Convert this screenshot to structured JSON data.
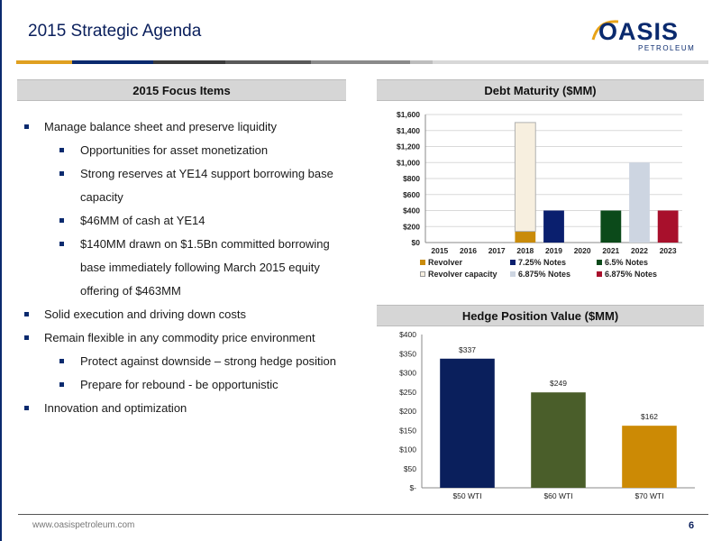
{
  "page": {
    "title": "2015 Strategic Agenda",
    "footer_url": "www.oasispetroleum.com",
    "page_number": "6"
  },
  "logo": {
    "word": "OASIS",
    "sub": "PETROLEUM",
    "color": "#0a2a6e",
    "accent": "#e8a317"
  },
  "stripe_colors": [
    "#e0a020",
    "#0a2a6e",
    "#3a3a3a",
    "#5a5a5a",
    "#8a8a8a",
    "#bdbdbd",
    "#d8d8d8"
  ],
  "focus": {
    "header": "2015 Focus Items",
    "bullets": [
      {
        "level": 1,
        "text": "Manage balance sheet and preserve liquidity"
      },
      {
        "level": 2,
        "text": "Opportunities for asset monetization"
      },
      {
        "level": 2,
        "text": "Strong reserves at YE14 support borrowing base capacity"
      },
      {
        "level": 2,
        "text": "$46MM of cash at YE14"
      },
      {
        "level": 2,
        "text": "$140MM drawn on $1.5Bn committed borrowing base immediately following March 2015 equity offering of $463MM"
      },
      {
        "level": 1,
        "text": "Solid execution and driving down costs"
      },
      {
        "level": 1,
        "text": "Remain flexible in any commodity price environment"
      },
      {
        "level": 2,
        "text": "Protect against downside – strong hedge position"
      },
      {
        "level": 2,
        "text": "Prepare for rebound  - be opportunistic"
      },
      {
        "level": 1,
        "text": "Innovation and optimization"
      }
    ]
  },
  "chart_data": [
    {
      "type": "bar",
      "title": "Debt Maturity ($MM)",
      "stacked": true,
      "categories": [
        "2015",
        "2016",
        "2017",
        "2018",
        "2019",
        "2020",
        "2021",
        "2022",
        "2023"
      ],
      "ylim": [
        0,
        1600
      ],
      "yticks": [
        "$0",
        "$200",
        "$400",
        "$600",
        "$800",
        "$1,000",
        "$1,200",
        "$1,400",
        "$1,600"
      ],
      "legend_position": "bottom",
      "series": [
        {
          "name": "Revolver",
          "color": "#c98b0a",
          "values": [
            0,
            0,
            0,
            140,
            0,
            0,
            0,
            0,
            0
          ]
        },
        {
          "name": "7.25% Notes",
          "color": "#0a1f6e",
          "values": [
            0,
            0,
            0,
            0,
            400,
            0,
            0,
            0,
            0
          ]
        },
        {
          "name": "6.5% Notes",
          "color": "#0b4a1a",
          "values": [
            0,
            0,
            0,
            0,
            0,
            0,
            400,
            0,
            0
          ]
        },
        {
          "name": "Revolver capacity",
          "color": "#f7efdf",
          "values": [
            0,
            0,
            0,
            1360,
            0,
            0,
            0,
            0,
            0
          ]
        },
        {
          "name": "6.875% Notes",
          "color": "#cdd5e1",
          "values": [
            0,
            0,
            0,
            0,
            0,
            0,
            0,
            1000,
            0
          ]
        },
        {
          "name": "6.875% Notes",
          "color": "#a8102c",
          "values": [
            0,
            0,
            0,
            0,
            0,
            0,
            0,
            0,
            400
          ]
        }
      ]
    },
    {
      "type": "bar",
      "title": "Hedge Position Value ($MM)",
      "categories": [
        "$50 WTI",
        "$60 WTI",
        "$70 WTI"
      ],
      "values": [
        337,
        249,
        162
      ],
      "data_labels": [
        "$337",
        "$249",
        "$162"
      ],
      "colors": [
        "#0a1f5c",
        "#4a5e2a",
        "#cc8a05"
      ],
      "ylim": [
        0,
        400
      ],
      "yticks": [
        "$-",
        "$50",
        "$100",
        "$150",
        "$200",
        "$250",
        "$300",
        "$350",
        "$400"
      ]
    }
  ]
}
